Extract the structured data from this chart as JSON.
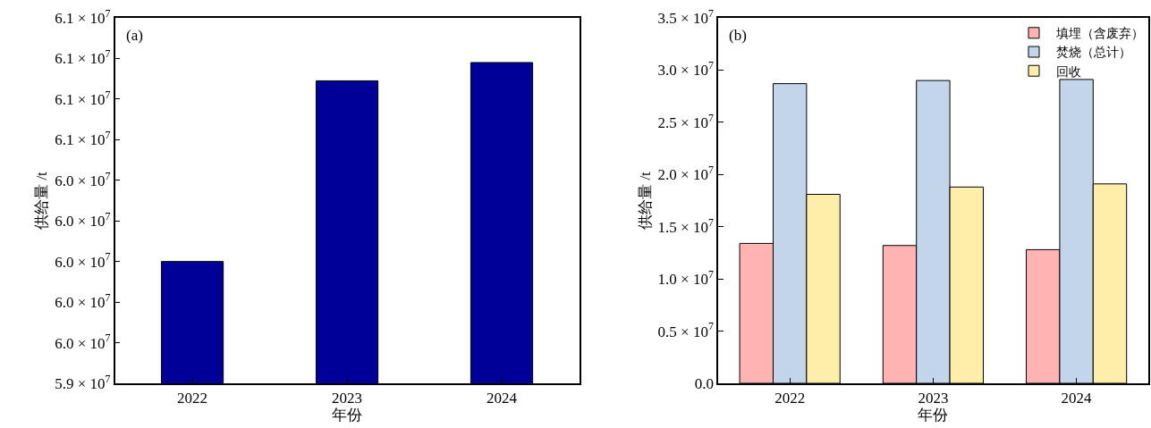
{
  "chart_data": [
    {
      "type": "bar",
      "categories": [
        "2022",
        "2023",
        "2024"
      ],
      "values": [
        60000000,
        60890000,
        60980000
      ],
      "color": "#000099",
      "xlabel": "年份",
      "ylabel": "供给量 /t",
      "annotations": [
        "(a)"
      ],
      "ylim": [
        59400000,
        61200000
      ],
      "yticks": [
        {
          "value": 59400000,
          "label": "5.9 × 10$^{7}$"
        },
        {
          "value": 59600000,
          "label": "6.0 × 10$^{7}$"
        },
        {
          "value": 59800000,
          "label": "6.0 × 10$^{7}$"
        },
        {
          "value": 60000000,
          "label": "6.0 × 10$^{7}$"
        },
        {
          "value": 60200000,
          "label": "6.0 × 10$^{7}$"
        },
        {
          "value": 60400000,
          "label": "6.0 × 10$^{7}$"
        },
        {
          "value": 60600000,
          "label": "6.1 × 10$^{7}$"
        },
        {
          "value": 60800000,
          "label": "6.1 × 10$^{7}$"
        },
        {
          "value": 61000000,
          "label": "6.1 × 10$^{7}$"
        },
        {
          "value": 61200000,
          "label": "6.1 × 10$^{7}$"
        }
      ],
      "legend": false
    },
    {
      "type": "bar",
      "categories": [
        "2022",
        "2023",
        "2024"
      ],
      "xlabel": "年份",
      "ylabel": "供给量 /t",
      "annotations": [
        "(b)"
      ],
      "series": [
        {
          "name": "填埋（含废弃）",
          "color": "#ffb3b3",
          "values": [
            13400000,
            13200000,
            12800000
          ]
        },
        {
          "name": "焚烧（总计）",
          "color": "#c2d5ea",
          "values": [
            28700000,
            29000000,
            29100000
          ]
        },
        {
          "name": "回收",
          "color": "#ffeeaa",
          "values": [
            18100000,
            18800000,
            19100000
          ]
        }
      ],
      "ylim": [
        0,
        35000000
      ],
      "yticks": [
        {
          "value": 0,
          "label": "0.0"
        },
        {
          "value": 5000000,
          "label": "0.5 × 10$^{7}$"
        },
        {
          "value": 10000000,
          "label": "1.0 × 10$^{7}$"
        },
        {
          "value": 15000000,
          "label": "1.5 × 10$^{7}$"
        },
        {
          "value": 20000000,
          "label": "2.0 × 10$^{7}$"
        },
        {
          "value": 25000000,
          "label": "2.5 × 10$^{7}$"
        },
        {
          "value": 30000000,
          "label": "3.0 × 10$^{7}$"
        },
        {
          "value": 35000000,
          "label": "3.5 × 10$^{7}$"
        }
      ],
      "legend": "top right"
    }
  ]
}
